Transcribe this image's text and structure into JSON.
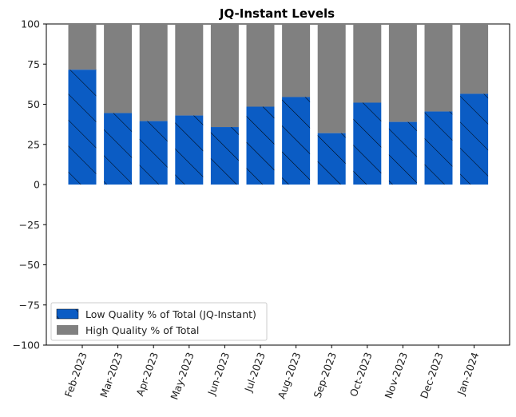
{
  "chart_data": {
    "type": "bar",
    "stacked": true,
    "title": "JQ-Instant Levels",
    "xlabel": "",
    "ylabel": "",
    "categories": [
      "Feb-2023",
      "Mar-2023",
      "Apr-2023",
      "May-2023",
      "Jun-2023",
      "Jul-2023",
      "Aug-2023",
      "Sep-2023",
      "Oct-2023",
      "Nov-2023",
      "Dec-2023",
      "Jan-2024"
    ],
    "series": [
      {
        "name": "Low Quality % of Total (JQ-Instant)",
        "color": "#0b5cc4",
        "hatch": "diagonal",
        "values": [
          71.5,
          44.5,
          39.5,
          43.0,
          35.8,
          48.5,
          54.5,
          32.0,
          51.0,
          39.0,
          45.5,
          56.5
        ]
      },
      {
        "name": "High Quality % of Total",
        "color": "#808080",
        "values": [
          28.5,
          55.5,
          60.5,
          57.0,
          64.2,
          51.5,
          45.5,
          68.0,
          49.0,
          61.0,
          54.5,
          43.5
        ]
      }
    ],
    "ylim": [
      -100,
      100
    ],
    "yticks": [
      100,
      75,
      50,
      25,
      0,
      -25,
      -50,
      -75,
      -100
    ],
    "grid": false,
    "legend_position": "lower-left"
  }
}
